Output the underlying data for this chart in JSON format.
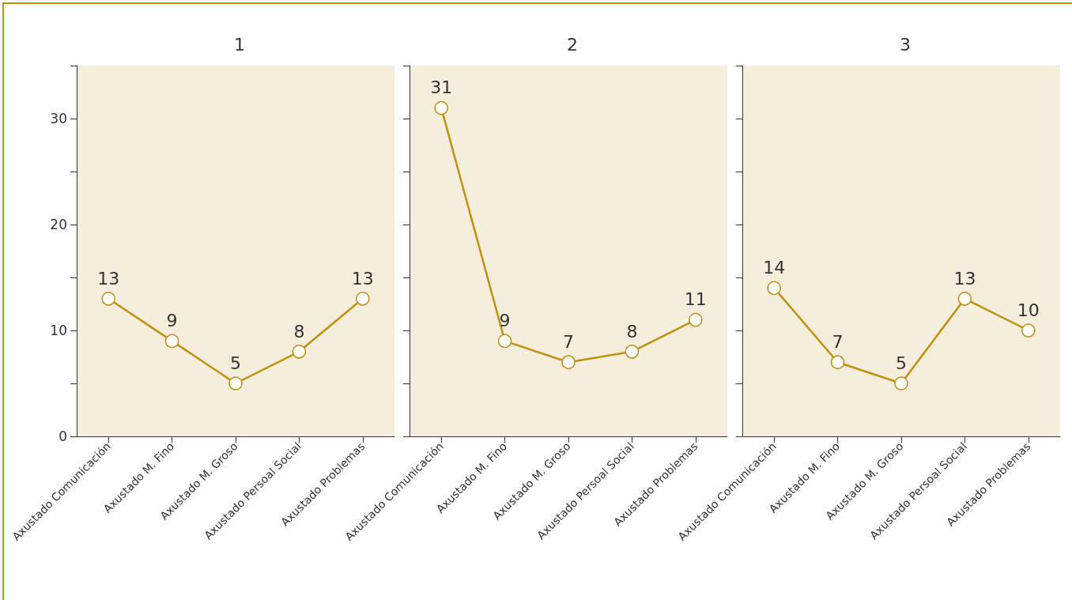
{
  "chart_data": [
    {
      "type": "line",
      "title": "1",
      "categories": [
        "Axustado Comunicación",
        "Axustado M. Fino",
        "Axustado M. Groso",
        "Axustado Persoal Social",
        "Axustado Problemas"
      ],
      "series": [
        {
          "color": "#c0900f",
          "values": [
            13,
            9,
            5,
            8,
            13
          ]
        }
      ],
      "ylim": [
        0,
        35
      ],
      "yticks": [
        0,
        {
          "value": 5,
          "label": null
        },
        10,
        {
          "value": 15,
          "label": null
        },
        20,
        {
          "value": 25,
          "label": null
        },
        30,
        {
          "value": 35,
          "label": null
        }
      ],
      "grid": false,
      "legend": false,
      "marker": "circle",
      "line_style": "solid",
      "data_labels": true
    },
    {
      "type": "line",
      "title": "2",
      "categories": [
        "Axustado Comunicación",
        "Axustado M. Fino",
        "Axustado M. Groso",
        "Axustado Persoal Social",
        "Axustado Problemas"
      ],
      "series": [
        {
          "color": "#c0900f",
          "values": [
            31,
            9,
            7,
            8,
            11
          ]
        }
      ],
      "ylim": [
        0,
        35
      ],
      "yticks": [
        0,
        {
          "value": 5,
          "label": null
        },
        10,
        {
          "value": 15,
          "label": null
        },
        20,
        {
          "value": 25,
          "label": null
        },
        30,
        {
          "value": 35,
          "label": null
        }
      ],
      "tick_labels": "x",
      "grid": false,
      "legend": false,
      "marker": "circle",
      "line_style": "solid",
      "data_labels": true
    },
    {
      "type": "line",
      "title": "3",
      "categories": [
        "Axustado Comunicación",
        "Axustado M. Fino",
        "Axustado M. Groso",
        "Axustado Persoal Social",
        "Axustado Problemas"
      ],
      "series": [
        {
          "color": "#c0900f",
          "values": [
            14,
            7,
            5,
            13,
            10
          ]
        }
      ],
      "ylim": [
        0,
        35
      ],
      "yticks": [
        0,
        {
          "value": 5,
          "label": null
        },
        10,
        {
          "value": 15,
          "label": null
        },
        20,
        {
          "value": 25,
          "label": null
        },
        30,
        {
          "value": 35,
          "label": null
        }
      ],
      "tick_labels": "x",
      "grid": false,
      "legend": false,
      "marker": "circle",
      "line_style": "solid",
      "data_labels": true
    }
  ]
}
